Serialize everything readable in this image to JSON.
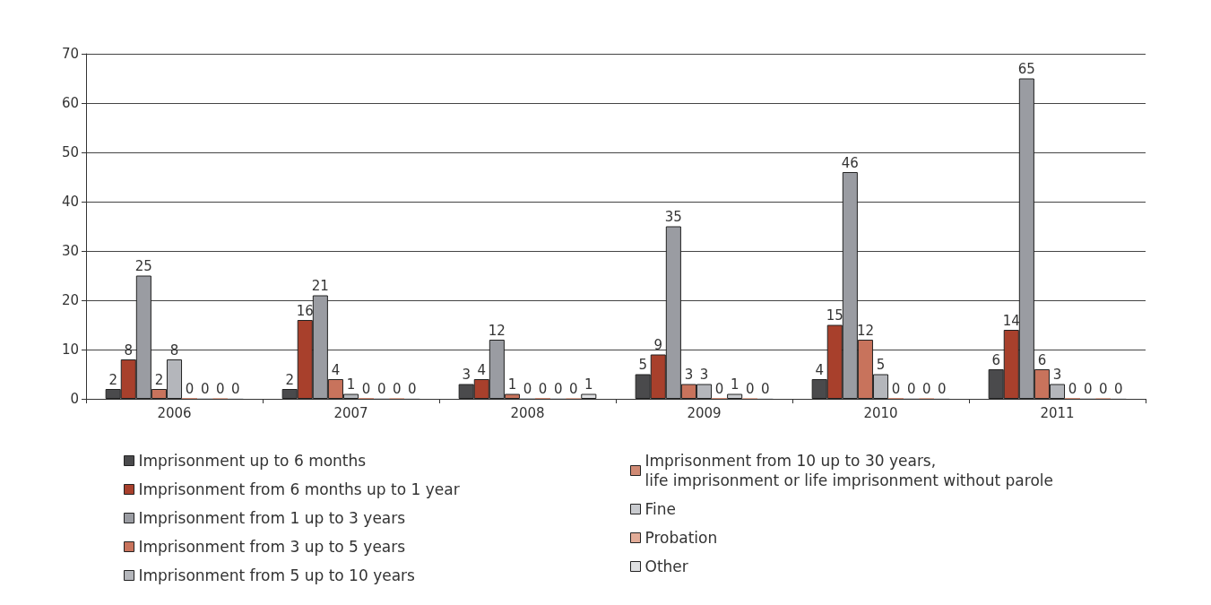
{
  "chart_data": {
    "type": "bar",
    "categories": [
      "2006",
      "2007",
      "2008",
      "2009",
      "2010",
      "2011"
    ],
    "series": [
      {
        "name": "Imprisonment up to 6 months",
        "color": "#4a4a4c",
        "values": [
          2,
          2,
          3,
          5,
          4,
          6
        ]
      },
      {
        "name": "Imprisonment from 6 months up to 1 year",
        "color": "#a8402c",
        "values": [
          8,
          16,
          4,
          9,
          15,
          14
        ]
      },
      {
        "name": "Imprisonment from 1 up to 3 years",
        "color": "#9a9ca2",
        "values": [
          25,
          21,
          12,
          35,
          46,
          65
        ]
      },
      {
        "name": "Imprisonment from 3 up to 5 years",
        "color": "#c8735c",
        "values": [
          2,
          4,
          1,
          3,
          12,
          6
        ]
      },
      {
        "name": "Imprisonment from 5 up to 10 years",
        "color": "#b4b6bb",
        "values": [
          8,
          1,
          0,
          3,
          5,
          3
        ]
      },
      {
        "name": "Imprisonment from 10 up to 30 years,\nlife imprisonment or life imprisonment without parole",
        "color": "#d08a74",
        "values": [
          0,
          0,
          0,
          0,
          0,
          0
        ]
      },
      {
        "name": "Fine",
        "color": "#c9cbcf",
        "values": [
          0,
          0,
          0,
          1,
          0,
          0
        ]
      },
      {
        "name": "Probation",
        "color": "#e2ac98",
        "values": [
          0,
          0,
          0,
          0,
          0,
          0
        ]
      },
      {
        "name": "Other",
        "color": "#dfe0e2",
        "values": [
          0,
          0,
          1,
          0,
          0,
          0
        ]
      }
    ],
    "ylim": [
      0,
      70
    ],
    "yticks": [
      0,
      10,
      20,
      30,
      40,
      50,
      60,
      70
    ],
    "grid": "y",
    "legend": "bottom",
    "data_labels": true
  }
}
